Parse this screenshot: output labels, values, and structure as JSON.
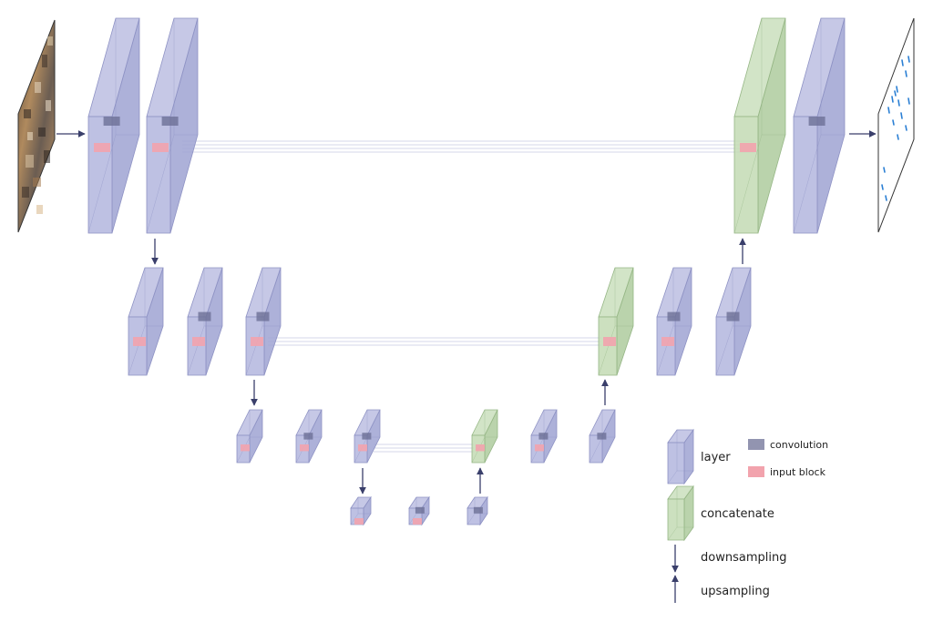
{
  "legend": {
    "layer": "layer",
    "convolution": "convolution",
    "input_block": "input block",
    "concatenate": "concatenate",
    "downsampling": "downsampling",
    "upsampling": "upsampling"
  },
  "colors": {
    "layer_face": "#b3b6de",
    "layer_side": "#9fa3d2",
    "layer_edge": "#8e92c4",
    "concat_face": "#c3dbb4",
    "concat_side": "#aecb9d",
    "concat_edge": "#95b685",
    "conv_block": "#6d7096",
    "input_block": "#f2a3ad",
    "arrow": "#3a3f6b",
    "output_mark": "#2a7fd4"
  },
  "blocks": [
    {
      "id": "enc1-a",
      "type": "layer",
      "conv": true,
      "input": true
    },
    {
      "id": "enc1-b",
      "type": "layer",
      "conv": true,
      "input": true
    },
    {
      "id": "enc2-a",
      "type": "layer",
      "conv": false,
      "input": true
    },
    {
      "id": "enc2-b",
      "type": "layer",
      "conv": true,
      "input": true
    },
    {
      "id": "enc2-c",
      "type": "layer",
      "conv": true,
      "input": true
    },
    {
      "id": "enc3-a",
      "type": "layer",
      "conv": false,
      "input": true
    },
    {
      "id": "enc3-b",
      "type": "layer",
      "conv": true,
      "input": true
    },
    {
      "id": "enc3-c",
      "type": "layer",
      "conv": true,
      "input": true
    },
    {
      "id": "bott-a",
      "type": "layer",
      "conv": false,
      "input": true
    },
    {
      "id": "bott-b",
      "type": "layer",
      "conv": true,
      "input": true
    },
    {
      "id": "bott-c",
      "type": "layer",
      "conv": true,
      "input": false
    },
    {
      "id": "dec3-a",
      "type": "concatenate",
      "conv": false,
      "input": true
    },
    {
      "id": "dec3-b",
      "type": "layer",
      "conv": true,
      "input": true
    },
    {
      "id": "dec3-c",
      "type": "layer",
      "conv": true,
      "input": false
    },
    {
      "id": "dec2-a",
      "type": "concatenate",
      "conv": false,
      "input": true
    },
    {
      "id": "dec2-b",
      "type": "layer",
      "conv": true,
      "input": true
    },
    {
      "id": "dec2-c",
      "type": "layer",
      "conv": true,
      "input": false
    },
    {
      "id": "dec1-a",
      "type": "concatenate",
      "conv": false,
      "input": true
    },
    {
      "id": "dec1-b",
      "type": "layer",
      "conv": true,
      "input": false
    }
  ]
}
